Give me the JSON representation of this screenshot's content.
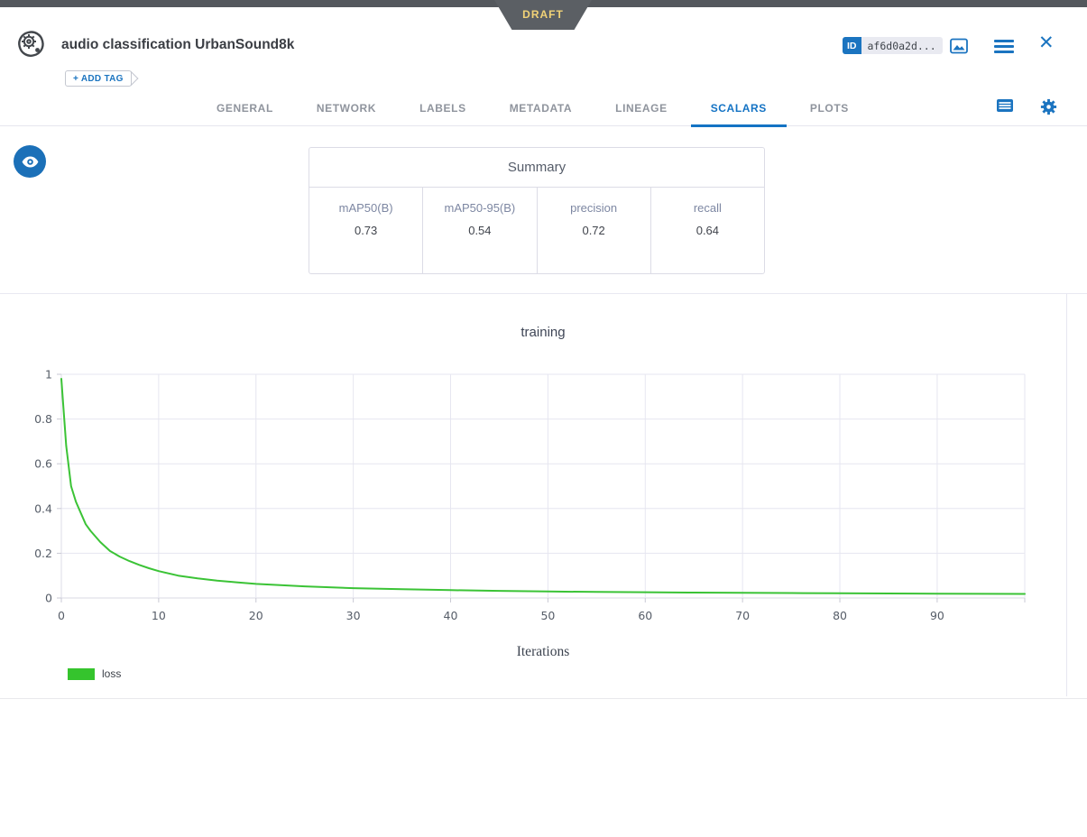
{
  "ribbon": {
    "label": "DRAFT"
  },
  "header": {
    "title": "audio classification UrbanSound8k",
    "id_badge": {
      "label": "ID",
      "value": "af6d0a2d..."
    },
    "add_tag_label": "+ ADD TAG",
    "icons": {
      "close_glyph": "✕"
    }
  },
  "tabs": {
    "items": [
      {
        "label": "GENERAL",
        "active": false
      },
      {
        "label": "NETWORK",
        "active": false
      },
      {
        "label": "LABELS",
        "active": false
      },
      {
        "label": "METADATA",
        "active": false
      },
      {
        "label": "LINEAGE",
        "active": false
      },
      {
        "label": "SCALARS",
        "active": true
      },
      {
        "label": "PLOTS",
        "active": false
      }
    ]
  },
  "summary": {
    "title": "Summary",
    "metrics": [
      {
        "label": "mAP50(B)",
        "value": "0.73"
      },
      {
        "label": "mAP50-95(B)",
        "value": "0.54"
      },
      {
        "label": "precision",
        "value": "0.72"
      },
      {
        "label": "recall",
        "value": "0.64"
      }
    ]
  },
  "chart_data": {
    "type": "line",
    "title": "training",
    "xlabel": "Iterations",
    "ylabel": "",
    "xlim": [
      0,
      99
    ],
    "ylim": [
      0,
      1
    ],
    "x_ticks": [
      0,
      10,
      20,
      30,
      40,
      50,
      60,
      70,
      80,
      90
    ],
    "y_ticks": [
      0,
      0.2,
      0.4,
      0.6,
      0.8,
      1
    ],
    "grid": true,
    "legend_position": "bottom-left",
    "legend": [
      {
        "name": "loss",
        "color": "#35c42d"
      }
    ],
    "series": [
      {
        "name": "loss",
        "color": "#3bc336",
        "x": [
          0,
          0.5,
          1,
          1.5,
          2,
          2.5,
          3,
          4,
          5,
          6,
          7,
          8,
          9,
          10,
          12,
          14,
          16,
          18,
          20,
          25,
          30,
          35,
          40,
          45,
          50,
          55,
          60,
          65,
          70,
          75,
          80,
          85,
          90,
          95,
          99
        ],
        "y": [
          0.98,
          0.68,
          0.5,
          0.43,
          0.38,
          0.33,
          0.3,
          0.25,
          0.21,
          0.185,
          0.165,
          0.148,
          0.133,
          0.12,
          0.1,
          0.088,
          0.078,
          0.07,
          0.063,
          0.052,
          0.044,
          0.039,
          0.035,
          0.032,
          0.029,
          0.027,
          0.026,
          0.024,
          0.023,
          0.022,
          0.021,
          0.02,
          0.019,
          0.0185,
          0.018
        ]
      }
    ]
  },
  "colors": {
    "accent_blue": "#1b74c0",
    "active_tab": "#1473c4",
    "ribbon_bg": "#5b5f64",
    "ribbon_text": "#f2d377",
    "loss_green": "#35c42d",
    "grid_line": "#e6e6f0"
  }
}
